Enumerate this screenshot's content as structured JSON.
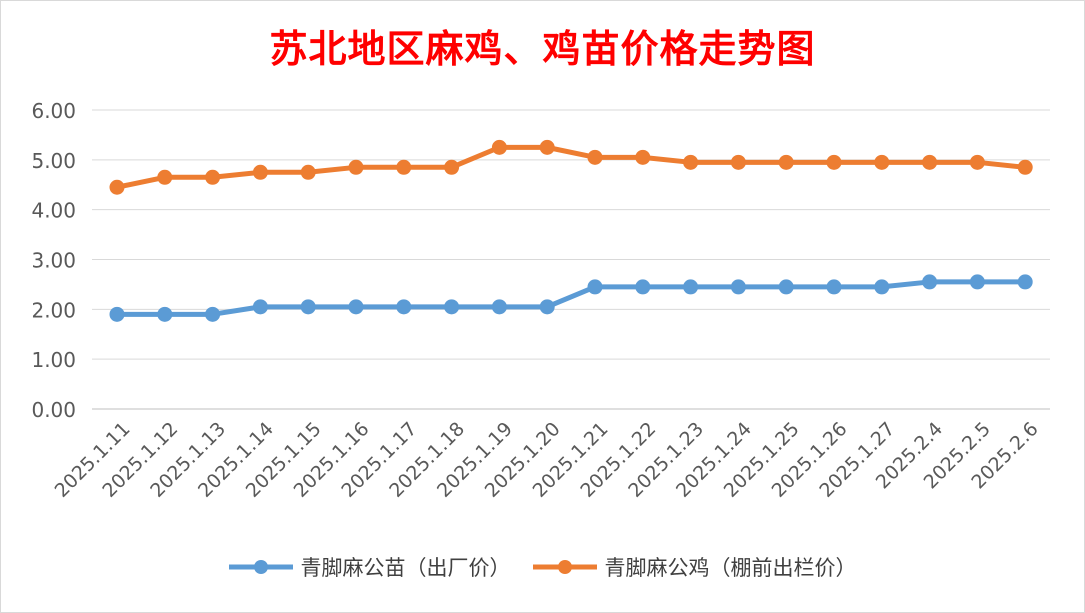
{
  "chart_data": {
    "type": "line",
    "title": "苏北地区麻鸡、鸡苗价格走势图",
    "xlabel": "",
    "ylabel": "",
    "ylim": [
      0,
      6
    ],
    "yticks": [
      "0.00",
      "1.00",
      "2.00",
      "3.00",
      "4.00",
      "5.00",
      "6.00"
    ],
    "categories": [
      "2025.1.11",
      "2025.1.12",
      "2025.1.13",
      "2025.1.14",
      "2025.1.15",
      "2025.1.16",
      "2025.1.17",
      "2025.1.18",
      "2025.1.19",
      "2025.1.20",
      "2025.1.21",
      "2025.1.22",
      "2025.1.23",
      "2025.1.24",
      "2025.1.25",
      "2025.1.26",
      "2025.1.27",
      "2025.2.4",
      "2025.2.5",
      "2025.2.6"
    ],
    "series": [
      {
        "name": "青脚麻公苗（出厂价）",
        "color": "#5b9bd5",
        "values": [
          1.9,
          1.9,
          1.9,
          2.05,
          2.05,
          2.05,
          2.05,
          2.05,
          2.05,
          2.05,
          2.45,
          2.45,
          2.45,
          2.45,
          2.45,
          2.45,
          2.45,
          2.55,
          2.55,
          2.55
        ]
      },
      {
        "name": "青脚麻公鸡（棚前出栏价）",
        "color": "#ed7d31",
        "values": [
          4.45,
          4.65,
          4.65,
          4.75,
          4.75,
          4.85,
          4.85,
          4.85,
          5.25,
          5.25,
          5.05,
          5.05,
          4.95,
          4.95,
          4.95,
          4.95,
          4.95,
          4.95,
          4.95,
          4.85
        ]
      }
    ],
    "grid": true,
    "legend_position": "bottom"
  }
}
